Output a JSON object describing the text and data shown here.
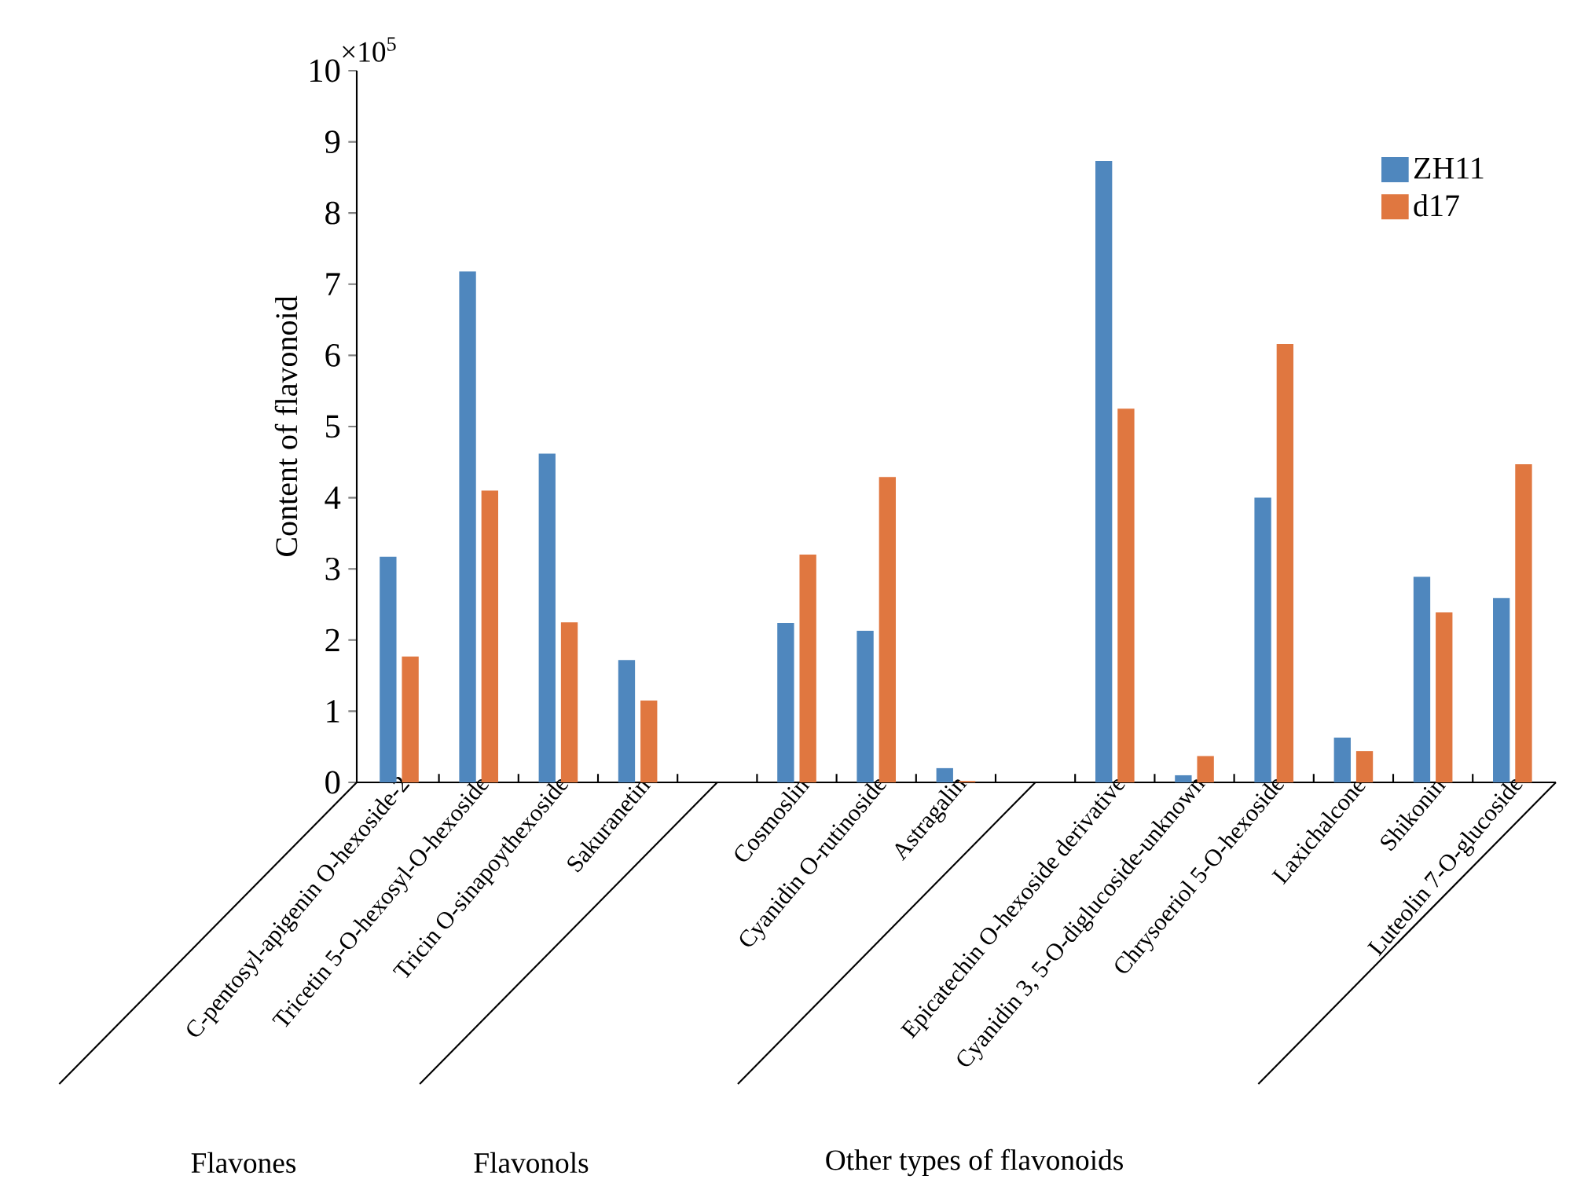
{
  "chart_data": {
    "type": "bar",
    "ylabel": "Content of flavonoid",
    "categories": [
      "C-pentosyl-apigenin O-hexoside-2",
      "Tricetin 5-O-hexosyl-O-hexoside",
      "Tricin O-sinapoythexoside",
      "Sakuranetin",
      null,
      "Cosmoslin",
      "Cyanidin O-rutinoside",
      "Astragalin",
      null,
      "Epicatechin O-hexoside derivative",
      "Cyanidin 3, 5-O-diglucoside-unknown",
      "Chrysoeriol 5-O-hexoside",
      "Laxichalcone",
      "Shikonin",
      "Luteolin 7-O-glucoside"
    ],
    "series": [
      {
        "name": "ZH11",
        "color": "#4f87be",
        "values": [
          3.17,
          7.18,
          4.62,
          1.72,
          null,
          2.24,
          2.13,
          0.2,
          null,
          8.73,
          0.1,
          4.0,
          0.63,
          2.89,
          2.59
        ]
      },
      {
        "name": "d17",
        "color": "#e07740",
        "values": [
          1.77,
          4.1,
          2.25,
          1.15,
          null,
          3.2,
          4.29,
          0.02,
          null,
          5.25,
          0.37,
          6.16,
          0.44,
          2.39,
          4.47
        ]
      }
    ],
    "ylim": [
      0,
      10
    ],
    "yticks": [
      0,
      1,
      2,
      3,
      4,
      5,
      6,
      7,
      8,
      9,
      10
    ],
    "legend": "top right",
    "annotations": [
      "×10$^{5}$",
      "Flavones",
      "Flavonols",
      "Other types of flavonoids"
    ]
  }
}
